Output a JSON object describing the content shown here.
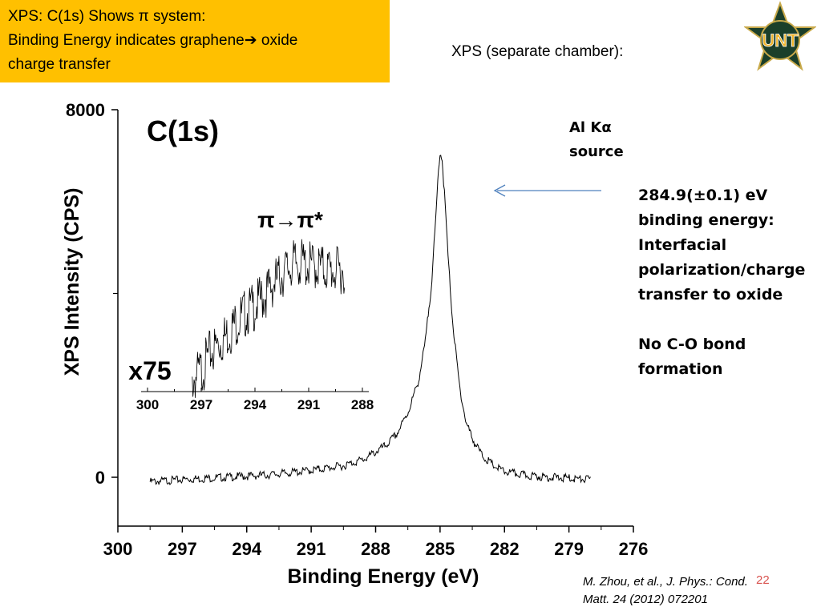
{
  "slide": {
    "title_lines": [
      "XPS:  C(1s) Shows π system:",
      "Binding Energy indicates graphene➔ oxide",
      "charge transfer"
    ],
    "subtitle": "XPS (separate chamber):",
    "logo_text": "UNT",
    "source_lines": [
      "Al Kα",
      "source"
    ],
    "annotation_lines": [
      "284.9(±0.1) eV",
      "binding energy:",
      "Interfacial",
      "polarization/charge",
      "transfer to oxide",
      "",
      "No C-O bond",
      "formation"
    ],
    "citation_lines": [
      "M. Zhou, et al., J. Phys.: Cond.",
      "Matt. 24 (2012) 072201"
    ],
    "slide_number": "22",
    "colors": {
      "title_bg": "#ffc000",
      "arrow": "#4f81bd",
      "trace": "#000000"
    }
  },
  "chart_data": [
    {
      "type": "line",
      "title": "C(1s)",
      "xlabel": "Binding Energy (eV)",
      "ylabel": "XPS Intensity (CPS)",
      "xlim": [
        300,
        276
      ],
      "ylim": [
        -1000,
        8000
      ],
      "x_ticks": [
        "300",
        "297",
        "294",
        "291",
        "288",
        "285",
        "282",
        "279",
        "276"
      ],
      "y_ticks": [
        "8000",
        "0"
      ],
      "peak": {
        "x": 285,
        "y": 7100,
        "label": "284.9(±0.1) eV"
      },
      "series": [
        {
          "x": [
            298.5,
            297,
            295,
            293,
            291,
            289.5,
            288.5,
            287.5,
            287,
            286.5,
            286,
            285.7,
            285.4,
            285.2,
            285.1,
            285.0,
            284.9,
            284.8,
            284.6,
            284.4,
            284.1,
            283.8,
            283.4,
            283,
            282.5,
            282,
            281,
            280,
            279,
            278.5,
            278
          ],
          "y": [
            -100,
            -50,
            0,
            50,
            150,
            250,
            400,
            700,
            950,
            1400,
            2100,
            2900,
            4200,
            5600,
            6500,
            7100,
            6900,
            6200,
            4600,
            3300,
            2000,
            1200,
            750,
            450,
            250,
            120,
            40,
            0,
            -20,
            -40,
            -50
          ]
        }
      ]
    },
    {
      "type": "line",
      "title": "π→π*",
      "inset_label": "x75",
      "xlim": [
        300,
        288
      ],
      "x_ticks": [
        "300",
        "297",
        "294",
        "291",
        "288"
      ],
      "series": [
        {
          "x": [
            297.5,
            297,
            296.5,
            296,
            295.5,
            295,
            294.5,
            294,
            293.5,
            293,
            292.5,
            292,
            291.5,
            291,
            290.5,
            290,
            289.5,
            289
          ],
          "y": [
            0.0,
            0.08,
            0.22,
            0.3,
            0.38,
            0.48,
            0.55,
            0.6,
            0.68,
            0.78,
            0.85,
            0.93,
            0.95,
            0.93,
            0.92,
            0.9,
            0.88,
            0.9
          ]
        }
      ]
    }
  ]
}
